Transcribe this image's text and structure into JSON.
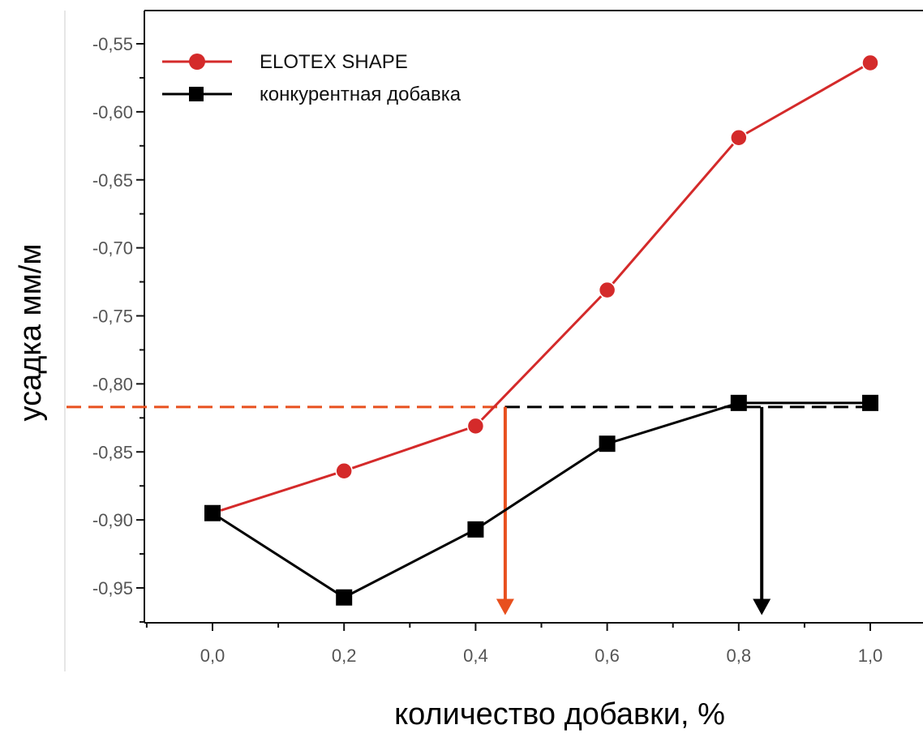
{
  "chart_data": {
    "type": "line",
    "title": "",
    "xlabel": "количество добавки, %",
    "ylabel": "усадка мм/м",
    "xlim": [
      -0.1,
      1.08
    ],
    "ylim": [
      -0.975,
      -0.535
    ],
    "x_ticks": [
      0.0,
      0.2,
      0.4,
      0.6,
      0.8,
      1.0
    ],
    "x_tick_labels": [
      "0,0",
      "0,2",
      "0,4",
      "0,6",
      "0,8",
      "1,0"
    ],
    "y_ticks": [
      -0.55,
      -0.6,
      -0.65,
      -0.7,
      -0.75,
      -0.8,
      -0.85,
      -0.9,
      -0.95
    ],
    "y_tick_labels": [
      "-0,55",
      "-0,60",
      "-0,65",
      "-0,70",
      "-0,75",
      "-0,80",
      "-0,85",
      "-0,90",
      "-0,95"
    ],
    "grid": false,
    "legend_position": "top-left",
    "series": [
      {
        "name": "ELOTEX SHAPE",
        "color": "#d42a2a",
        "marker": "circle",
        "x": [
          0.0,
          0.2,
          0.4,
          0.6,
          0.8,
          1.0
        ],
        "y": [
          -0.895,
          -0.864,
          -0.831,
          -0.731,
          -0.619,
          -0.564
        ]
      },
      {
        "name": "конкурентная добавка",
        "color": "#000000",
        "marker": "square",
        "x": [
          0.0,
          0.2,
          0.4,
          0.6,
          0.8,
          1.0
        ],
        "y": [
          -0.895,
          -0.957,
          -0.907,
          -0.844,
          -0.814,
          -0.814
        ]
      }
    ],
    "annotations": [
      {
        "type": "reference-line",
        "style": "dashed",
        "color": "#e8501e",
        "y": -0.817,
        "x_from": -0.1,
        "x_to": 0.445
      },
      {
        "type": "reference-line",
        "style": "dashed",
        "color": "#000000",
        "y": -0.817,
        "x_from": 0.445,
        "x_to": 1.0
      },
      {
        "type": "arrow-down",
        "color": "#e8501e",
        "x": 0.445,
        "y_from": -0.817,
        "y_to": -0.97
      },
      {
        "type": "arrow-down",
        "color": "#000000",
        "x": 0.835,
        "y_from": -0.817,
        "y_to": -0.97
      }
    ]
  }
}
